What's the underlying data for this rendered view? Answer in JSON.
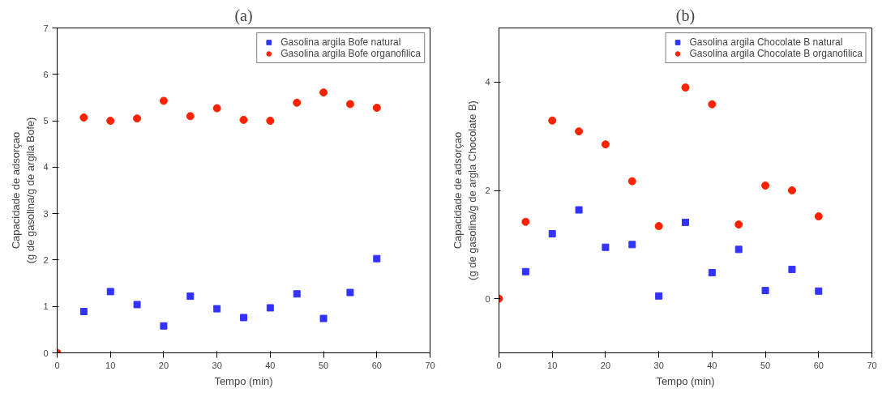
{
  "chart_data": [
    {
      "type": "scatter",
      "title": "(a)",
      "xlabel": "Tempo (min)",
      "ylabel": "Capacidade de adsorçao\n(g de gasolina/g de argila Bofe)",
      "xlim": [
        0,
        70
      ],
      "ylim": [
        0,
        7
      ],
      "xticks": [
        0,
        10,
        20,
        30,
        40,
        50,
        60,
        70
      ],
      "yticks": [
        0,
        1,
        2,
        3,
        4,
        5,
        6,
        7
      ],
      "grid": false,
      "legend": "top right",
      "series": [
        {
          "name": "Gasolina argila Bofe natural",
          "color": "#3333ff",
          "marker": "square",
          "x": [
            5,
            10,
            15,
            20,
            25,
            30,
            35,
            40,
            45,
            50,
            55,
            60
          ],
          "values": [
            0.89,
            1.32,
            1.04,
            0.58,
            1.22,
            0.95,
            0.76,
            0.97,
            1.27,
            0.74,
            1.3,
            2.03
          ]
        },
        {
          "name": "Gasolina argila Bofe organofilica",
          "color": "#ff2200",
          "marker": "circle",
          "x": [
            0,
            5,
            10,
            15,
            20,
            25,
            30,
            35,
            40,
            45,
            50,
            55,
            60
          ],
          "values": [
            0,
            5.07,
            5.0,
            5.05,
            5.43,
            5.1,
            5.27,
            5.02,
            5.0,
            5.39,
            5.61,
            5.36,
            5.28
          ]
        }
      ]
    },
    {
      "type": "scatter",
      "title": "(b)",
      "xlabel": "Tempo (min)",
      "ylabel": "Capacidade de adsorçao\n(g de gasolina/g de argla Chocolate B)",
      "xlim": [
        0,
        70
      ],
      "ylim": [
        -1,
        5
      ],
      "xticks": [
        0,
        10,
        20,
        30,
        40,
        50,
        60,
        70
      ],
      "yticks": [
        0,
        2,
        4
      ],
      "grid": false,
      "legend": "top right",
      "series": [
        {
          "name": "Gasolina argila Chocolate B natural",
          "color": "#3333ff",
          "marker": "square",
          "x": [
            5,
            10,
            15,
            20,
            25,
            30,
            35,
            40,
            45,
            50,
            55,
            60
          ],
          "values": [
            0.5,
            1.2,
            1.64,
            0.95,
            1.0,
            0.05,
            1.41,
            0.48,
            0.91,
            0.15,
            0.54,
            0.14
          ]
        },
        {
          "name": "Gasolina argila Chocolate B organofilica",
          "color": "#ff2200",
          "marker": "circle",
          "x": [
            0,
            5,
            10,
            15,
            20,
            25,
            30,
            35,
            40,
            45,
            50,
            55,
            60
          ],
          "values": [
            0,
            1.42,
            3.29,
            3.09,
            2.85,
            2.17,
            1.34,
            3.9,
            3.59,
            1.37,
            2.09,
            2.0,
            1.52
          ]
        }
      ]
    }
  ]
}
